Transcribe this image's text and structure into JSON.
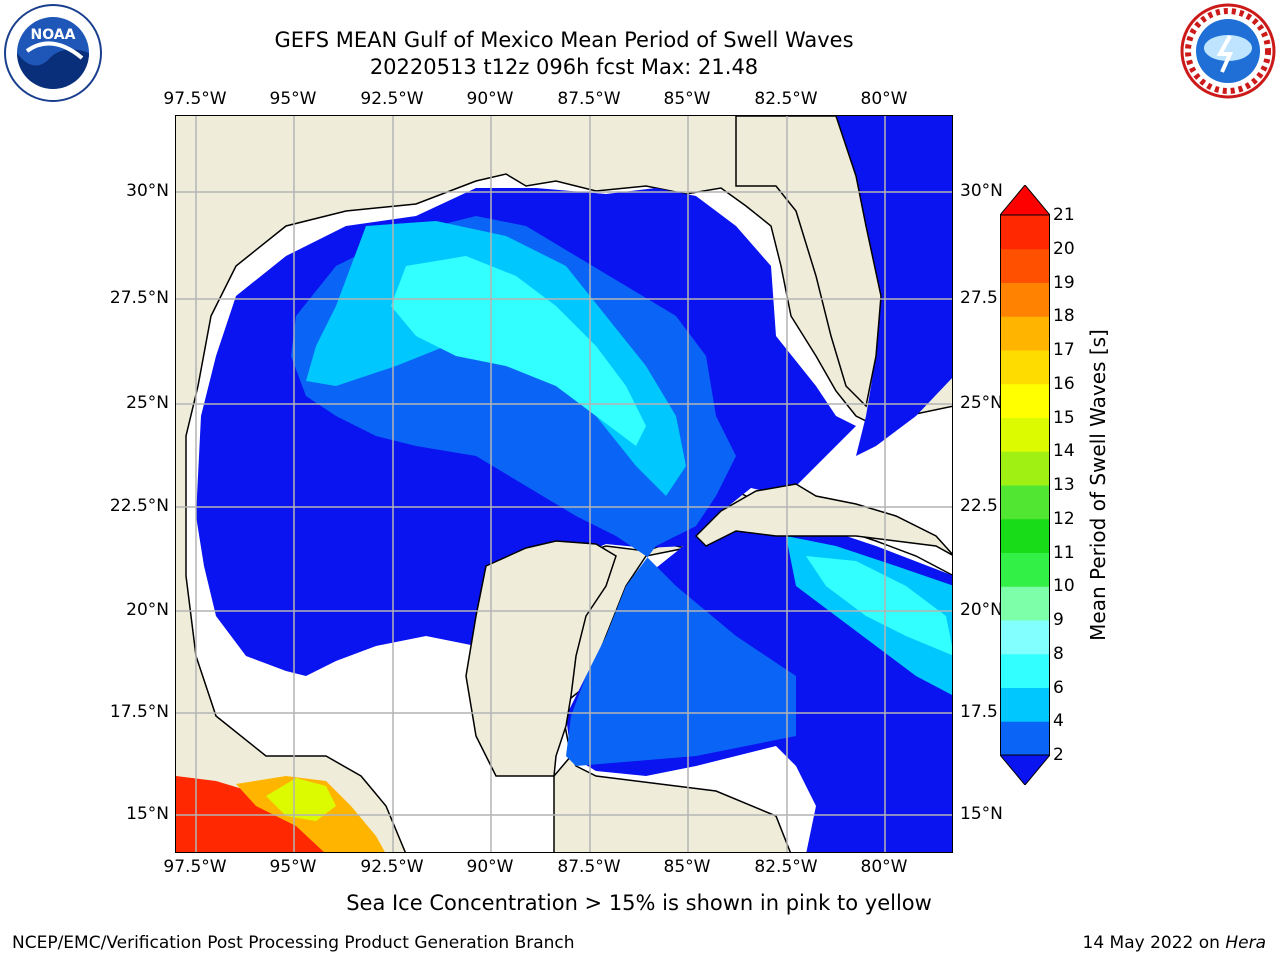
{
  "title_line1": "GEFS MEAN Gulf of Mexico Mean Period of Swell Waves",
  "title_line2": "20220513 t12z 096h fcst   Max: 21.48",
  "lon_ticks": [
    "97.5°W",
    "95°W",
    "92.5°W",
    "90°W",
    "87.5°W",
    "85°W",
    "82.5°W",
    "80°W"
  ],
  "lat_ticks_left": [
    "30°N",
    "27.5°N",
    "25°N",
    "22.5°N",
    "20°N",
    "17.5°N",
    "15°N"
  ],
  "lat_ticks_right": [
    "30°N",
    "27.5",
    "25°N",
    "22.5",
    "20°N",
    "17.5",
    "15°N"
  ],
  "colorbar": {
    "label": "Mean Period of Swell Waves [s]",
    "ticks": [
      "2",
      "4",
      "6",
      "8",
      "9",
      "10",
      "11",
      "12",
      "13",
      "14",
      "15",
      "16",
      "17",
      "18",
      "19",
      "20",
      "21"
    ],
    "colors": [
      "#0a14f0",
      "#0a64f5",
      "#00c8ff",
      "#32ffff",
      "#82ffff",
      "#7dffaa",
      "#32f046",
      "#19dc19",
      "#50e632",
      "#a0f014",
      "#dcfa00",
      "#ffff00",
      "#ffdc00",
      "#ffb400",
      "#ff8200",
      "#ff5000",
      "#ff2800",
      "#ff0000"
    ]
  },
  "ice_note": "Sea Ice Concentration > 15% is shown in pink to yellow",
  "footer_left": "NCEP/EMC/Verification Post Processing Product Generation Branch",
  "footer_date": "14 May 2022 on ",
  "footer_host": "Hera",
  "noaa_logo_text": "NOAA",
  "nws_logo_text": "NATIONAL WEATHER SERVICE",
  "colors": {
    "land": "#efedda",
    "ocean_deep": "#0a14f0",
    "ocean_mid": "#0a64f5",
    "ocean_light": "#00c8ff",
    "ocean_cyan": "#32ffff",
    "grid": "#b4b4b4"
  }
}
